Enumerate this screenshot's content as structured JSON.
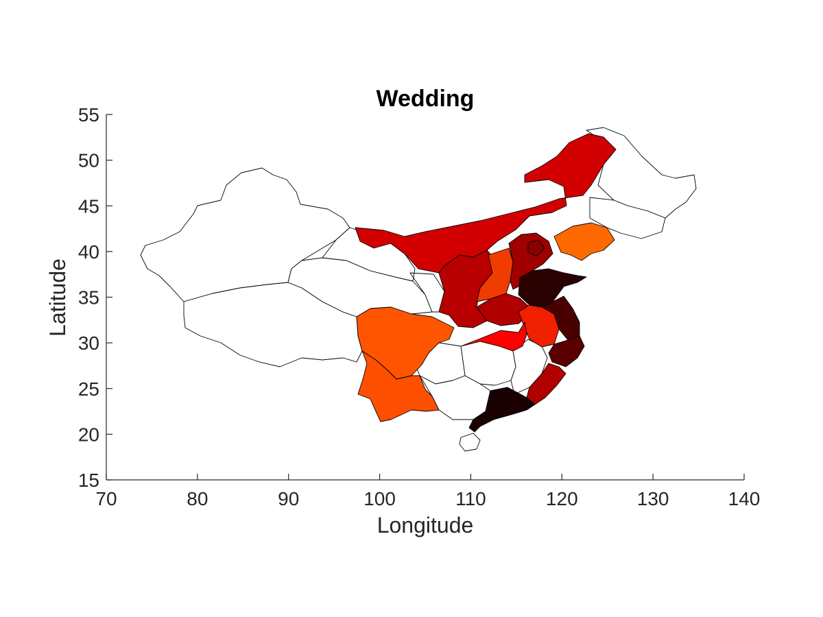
{
  "chart_data": {
    "type": "choropleth",
    "title": "Wedding",
    "xlabel": "Longitude",
    "ylabel": "Latitude",
    "xlim": [
      70,
      140
    ],
    "ylim": [
      15,
      55
    ],
    "xticks": [
      70,
      80,
      90,
      100,
      110,
      120,
      130,
      140
    ],
    "yticks": [
      15,
      20,
      25,
      30,
      35,
      40,
      45,
      50,
      55
    ],
    "grid": false,
    "colormap": "hot",
    "regions": [
      {
        "name": "Xinjiang",
        "fill": "#ffffff"
      },
      {
        "name": "Tibet",
        "fill": "#ffffff"
      },
      {
        "name": "Qinghai",
        "fill": "#ffffff"
      },
      {
        "name": "Gansu",
        "fill": "#ffffff"
      },
      {
        "name": "Heilongjiang",
        "fill": "#ffffff"
      },
      {
        "name": "Jilin",
        "fill": "#ffffff"
      },
      {
        "name": "Hunan",
        "fill": "#ffffff"
      },
      {
        "name": "Jiangxi",
        "fill": "#ffffff"
      },
      {
        "name": "Guizhou",
        "fill": "#ffffff"
      },
      {
        "name": "Guangxi",
        "fill": "#ffffff"
      },
      {
        "name": "Hainan",
        "fill": "#ffffff"
      },
      {
        "name": "Inner Mongolia",
        "fill": "#d20000"
      },
      {
        "name": "Ningxia-Shaanxi",
        "fill": "#b80000"
      },
      {
        "name": "Shanxi",
        "fill": "#f03c00"
      },
      {
        "name": "Hebei",
        "fill": "#a00000"
      },
      {
        "name": "Beijing-Tianjin",
        "fill": "#8a0000"
      },
      {
        "name": "Liaoning",
        "fill": "#ff6a00"
      },
      {
        "name": "Shandong",
        "fill": "#2a0000"
      },
      {
        "name": "Henan",
        "fill": "#b00000"
      },
      {
        "name": "Anhui",
        "fill": "#f02000"
      },
      {
        "name": "Jiangsu",
        "fill": "#4a0000"
      },
      {
        "name": "Zhejiang",
        "fill": "#5a0000"
      },
      {
        "name": "Fujian",
        "fill": "#b00000"
      },
      {
        "name": "Hubei",
        "fill": "#ff0000"
      },
      {
        "name": "Sichuan",
        "fill": "#ff5500"
      },
      {
        "name": "Yunnan",
        "fill": "#ff4f00"
      },
      {
        "name": "Guangdong",
        "fill": "#1a0000"
      }
    ]
  }
}
